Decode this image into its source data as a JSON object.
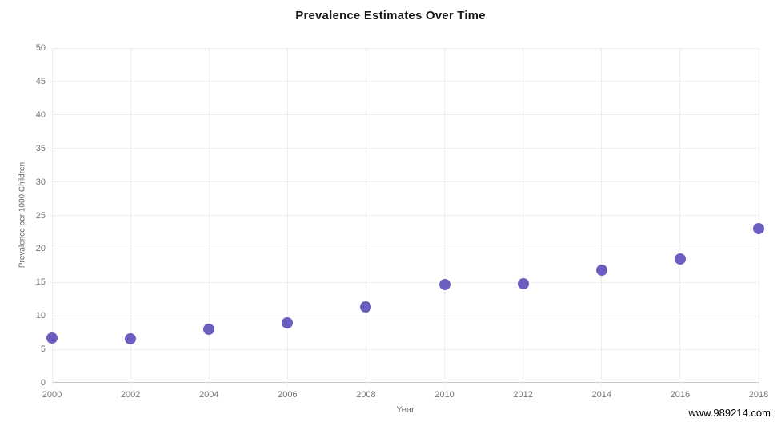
{
  "page": {
    "background": "#ffffff"
  },
  "watermark": {
    "text": "www.989214.com"
  },
  "chart_data": {
    "type": "scatter",
    "title": "Prevalence Estimates Over Time",
    "xlabel": "Year",
    "ylabel": "Prevalence per 1000 Children",
    "x": [
      2000,
      2002,
      2004,
      2006,
      2008,
      2010,
      2012,
      2014,
      2016,
      2018
    ],
    "y": [
      6.7,
      6.6,
      8.0,
      9.0,
      11.3,
      14.7,
      14.8,
      16.8,
      18.5,
      23.0
    ],
    "xlim": [
      2000,
      2018
    ],
    "ylim": [
      0,
      50
    ],
    "x_ticks": [
      2000,
      2002,
      2004,
      2006,
      2008,
      2010,
      2012,
      2014,
      2016,
      2018
    ],
    "y_ticks": [
      0,
      5,
      10,
      15,
      20,
      25,
      30,
      35,
      40,
      45,
      50
    ],
    "grid": true,
    "legend": "none",
    "colors": {
      "point": "#6A5FC1",
      "grid": "#ededed",
      "axis": "#c8c8c8",
      "tick_text": "#757575",
      "title_text": "#1a1a1a"
    }
  }
}
